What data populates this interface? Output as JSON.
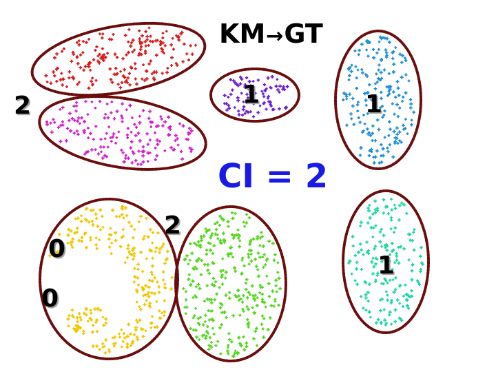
{
  "title": {
    "left": "KM",
    "arrow": "→",
    "right": "GT"
  },
  "ci_label": "CI = 2",
  "labels": {
    "top_left_pair": "2",
    "purple": "1",
    "blue": "1",
    "yellow_green_pair": "2",
    "yellow_upper": "0",
    "yellow_lower": "0",
    "teal": "1"
  },
  "colors": {
    "ellipse_border": "#6b0d0d",
    "red": "#d81b1b",
    "magenta": "#d21fc9",
    "purple": "#6a1fd6",
    "blue": "#1e8fd8",
    "yellow": "#f2c500",
    "green": "#55d61f",
    "teal": "#1fd6a6",
    "ci_text": "#1a1ae6"
  }
}
